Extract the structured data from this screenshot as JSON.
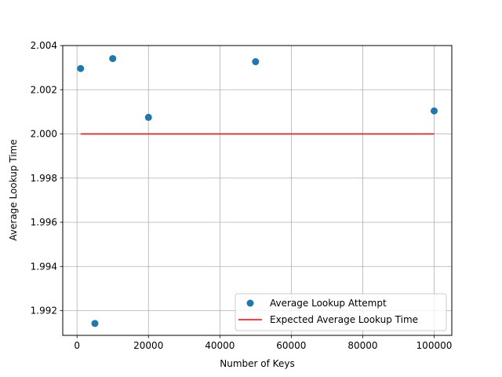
{
  "chart_data": {
    "type": "scatter",
    "title": "",
    "xlabel": "Number of Keys",
    "ylabel": "Average Lookup Time",
    "xlim": [
      -4000,
      104950
    ],
    "ylim": [
      1.99088,
      2.004
    ],
    "x_ticks": [
      0,
      20000,
      40000,
      60000,
      80000,
      100000
    ],
    "x_tick_labels": [
      "0",
      "20000",
      "40000",
      "60000",
      "80000",
      "100000"
    ],
    "y_ticks": [
      1.992,
      1.994,
      1.996,
      1.998,
      2.0,
      2.002,
      2.004
    ],
    "y_tick_labels": [
      "1.992",
      "1.994",
      "1.996",
      "1.998",
      "2.000",
      "2.002",
      "2.004"
    ],
    "grid": true,
    "legend_position": "lower-right",
    "series": [
      {
        "name": "Average Lookup Attempt",
        "kind": "scatter",
        "color": "#1f77b4",
        "x": [
          1000,
          5000,
          10000,
          20000,
          50000,
          100000
        ],
        "y": [
          2.00296,
          1.99142,
          2.00341,
          2.00075,
          2.00327,
          2.00104
        ]
      },
      {
        "name": "Expected Average Lookup Time",
        "kind": "line",
        "color": "#ff0000",
        "x": [
          1000,
          100000
        ],
        "y": [
          2.0,
          2.0
        ]
      }
    ]
  }
}
